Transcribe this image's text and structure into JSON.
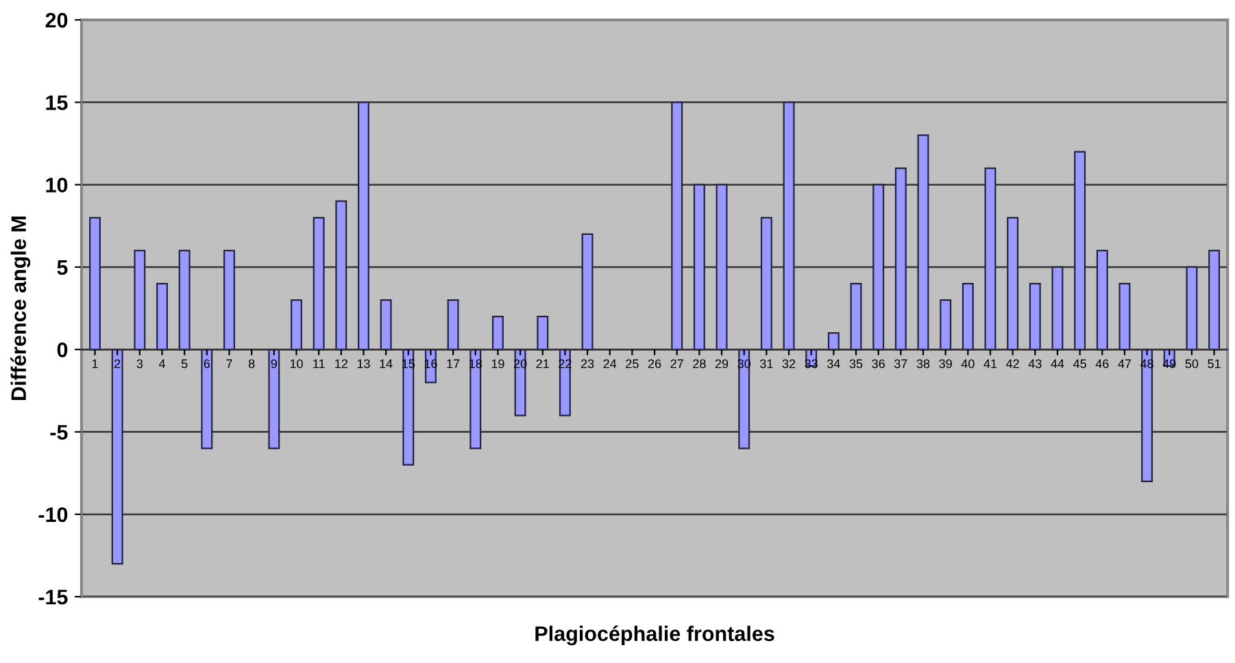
{
  "chart_data": {
    "type": "bar",
    "xlabel": "Plagiocéphalie frontales",
    "ylabel": "Différence angle M",
    "categories": [
      "1",
      "2",
      "3",
      "4",
      "5",
      "6",
      "7",
      "8",
      "9",
      "10",
      "11",
      "12",
      "13",
      "14",
      "15",
      "16",
      "17",
      "18",
      "19",
      "20",
      "21",
      "22",
      "23",
      "24",
      "25",
      "26",
      "27",
      "28",
      "29",
      "30",
      "31",
      "32",
      "33",
      "34",
      "35",
      "36",
      "37",
      "38",
      "39",
      "40",
      "41",
      "42",
      "43",
      "44",
      "45",
      "46",
      "47",
      "48",
      "49",
      "50",
      "51"
    ],
    "values": [
      8,
      -13,
      6,
      4,
      6,
      -6,
      6,
      0,
      -6,
      3,
      8,
      9,
      15,
      3,
      -7,
      -2,
      3,
      -6,
      2,
      -4,
      2,
      -4,
      7,
      0,
      0,
      0,
      15,
      10,
      10,
      -6,
      8,
      15,
      -1,
      1,
      4,
      10,
      11,
      13,
      3,
      4,
      11,
      8,
      4,
      5,
      12,
      6,
      4,
      -8,
      -1,
      5,
      6
    ],
    "color": "#9999ff",
    "ylim": [
      -15,
      20
    ],
    "yticks": [
      {
        "value": -15,
        "label": "-15"
      },
      {
        "value": -10,
        "label": "-10"
      },
      {
        "value": -5,
        "label": "-5"
      },
      0,
      5,
      10,
      15,
      20
    ],
    "grid": "y",
    "legend": false
  }
}
